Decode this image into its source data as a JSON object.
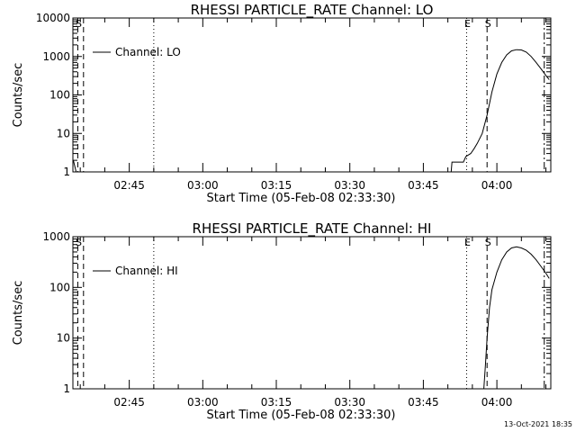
{
  "footer": {
    "timestamp": "13-Oct-2021 18:35"
  },
  "chart_data": [
    {
      "type": "line",
      "title": "RHESSI PARTICLE_RATE Channel: LO",
      "xlabel": "Start Time (05-Feb-08 02:33:30)",
      "ylabel": "Counts/sec",
      "yscale": "log",
      "xlim": [
        "02:33:30",
        "04:11:00"
      ],
      "ylim": [
        1,
        10000
      ],
      "xticks": [
        "02:45",
        "03:00",
        "03:15",
        "03:30",
        "03:45",
        "04:00"
      ],
      "yticks": [
        "1",
        "10",
        "100",
        "1000",
        "10000"
      ],
      "legend": {
        "position": "top-left",
        "entries": [
          "Channel: LO"
        ]
      },
      "series": [
        {
          "name": "Channel: LO",
          "points": [
            [
              "02:33:35",
              2.0
            ],
            [
              "02:34:10",
              1.0
            ],
            [
              "03:50:40",
              1.0
            ],
            [
              "03:50:50",
              1.8
            ],
            [
              "03:53:10",
              1.8
            ],
            [
              "03:53:40",
              2.5
            ],
            [
              "03:54:40",
              3.0
            ],
            [
              "03:55:20",
              4.0
            ],
            [
              "03:56:00",
              5.5
            ],
            [
              "03:57:00",
              10
            ],
            [
              "03:58:00",
              30
            ],
            [
              "03:59:00",
              120
            ],
            [
              "04:00:00",
              350
            ],
            [
              "04:01:00",
              700
            ],
            [
              "04:02:00",
              1100
            ],
            [
              "04:03:00",
              1400
            ],
            [
              "04:04:00",
              1500
            ],
            [
              "04:05:00",
              1480
            ],
            [
              "04:06:00",
              1300
            ],
            [
              "04:07:00",
              1000
            ],
            [
              "04:08:00",
              700
            ],
            [
              "04:09:00",
              480
            ],
            [
              "04:10:00",
              320
            ],
            [
              "04:10:40",
              250
            ]
          ]
        }
      ],
      "markers": [
        {
          "time": "02:34:30",
          "label": "S",
          "style": "dashed"
        },
        {
          "time": "02:35:40",
          "label": "",
          "style": "dashed"
        },
        {
          "time": "02:50:00",
          "label": "",
          "style": "dotted"
        },
        {
          "time": "03:53:50",
          "label": "E",
          "style": "dotted"
        },
        {
          "time": "03:58:00",
          "label": "S",
          "style": "dashed"
        },
        {
          "time": "04:09:40",
          "label": "",
          "style": "dashdot"
        }
      ]
    },
    {
      "type": "line",
      "title": "RHESSI PARTICLE_RATE Channel: HI",
      "xlabel": "Start Time (05-Feb-08 02:33:30)",
      "ylabel": "Counts/sec",
      "yscale": "log",
      "xlim": [
        "02:33:30",
        "04:11:00"
      ],
      "ylim": [
        1,
        1000
      ],
      "xticks": [
        "02:45",
        "03:00",
        "03:15",
        "03:30",
        "03:45",
        "04:00"
      ],
      "yticks": [
        "1",
        "10",
        "100",
        "1000"
      ],
      "legend": {
        "position": "top-left",
        "entries": [
          "Channel: HI"
        ]
      },
      "series": [
        {
          "name": "Channel: HI",
          "points": [
            [
              "03:57:20",
              1.0
            ],
            [
              "03:57:40",
              3.0
            ],
            [
              "03:58:00",
              10
            ],
            [
              "03:58:30",
              40
            ],
            [
              "03:59:00",
              90
            ],
            [
              "04:00:00",
              200
            ],
            [
              "04:01:00",
              350
            ],
            [
              "04:02:00",
              500
            ],
            [
              "04:03:00",
              600
            ],
            [
              "04:04:00",
              630
            ],
            [
              "04:05:00",
              600
            ],
            [
              "04:06:00",
              540
            ],
            [
              "04:07:00",
              450
            ],
            [
              "04:08:00",
              350
            ],
            [
              "04:09:00",
              260
            ],
            [
              "04:10:00",
              190
            ],
            [
              "04:10:40",
              150
            ]
          ]
        }
      ],
      "markers": [
        {
          "time": "02:34:30",
          "label": "S",
          "style": "dashed"
        },
        {
          "time": "02:35:40",
          "label": "",
          "style": "dashed"
        },
        {
          "time": "02:50:00",
          "label": "",
          "style": "dotted"
        },
        {
          "time": "03:53:50",
          "label": "E",
          "style": "dotted"
        },
        {
          "time": "03:58:00",
          "label": "S",
          "style": "dashed"
        },
        {
          "time": "04:09:40",
          "label": "",
          "style": "dashdot"
        }
      ]
    }
  ]
}
